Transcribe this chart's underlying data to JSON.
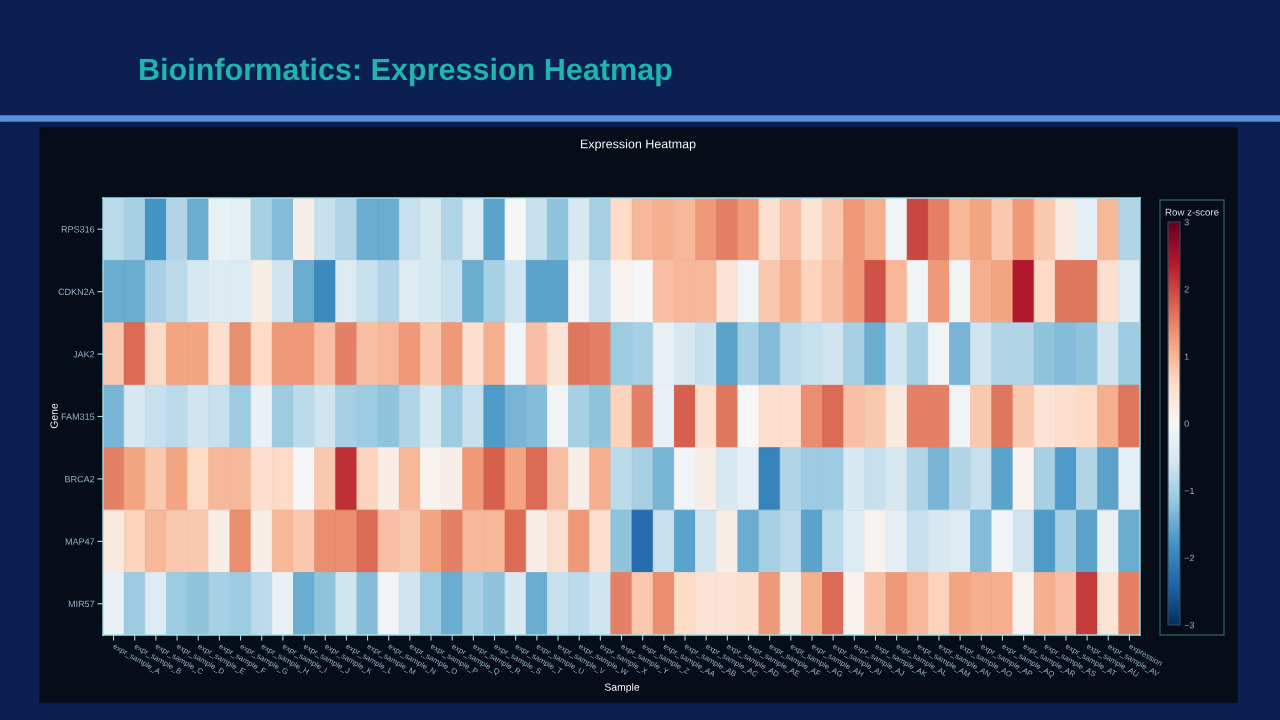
{
  "chart_data": {
    "type": "heatmap",
    "title": "Bioinformatics: Expression Heatmap",
    "subtitle": "Expression Heatmap",
    "xlabel": "Sample",
    "ylabel": "Gene",
    "clabel": "Row z-score",
    "categories": [
      "expr_sample_A",
      "expr_sample_B",
      "expr_sample_C",
      "expr_sample_D",
      "expr_sample_E",
      "expr_sample_F",
      "expr_sample_G",
      "expr_sample_H",
      "expr_sample_I",
      "expr_sample_J",
      "expr_sample_K",
      "expr_sample_L",
      "expr_sample_M",
      "expr_sample_N",
      "expr_sample_O",
      "expr_sample_P",
      "expr_sample_Q",
      "expr_sample_R",
      "expr_sample_S",
      "expr_sample_T",
      "expr_sample_U",
      "expr_sample_V",
      "expr_sample_W",
      "expr_sample_X",
      "expr_sample_Y",
      "expr_sample_Z",
      "expr_sample_AA",
      "expr_sample_AB",
      "expr_sample_AC",
      "expr_sample_AD",
      "expr_sample_AE",
      "expr_sample_AF",
      "expr_sample_AG",
      "expr_sample_AH",
      "expr_sample_AI",
      "expr_sample_AJ",
      "expr_sample_AK",
      "expr_sample_AL",
      "expr_sample_AM",
      "expr_sample_AN",
      "expr_sample_AO",
      "expr_sample_AP",
      "expr_sample_AQ",
      "expr_sample_AR",
      "expr_sample_AS",
      "expr_sample_AT",
      "expr_sample_AU",
      "expr_sample_AV",
      "expression"
    ],
    "y_categories": [
      "RPS316",
      "CDKN2A",
      "JAK2",
      "FAM315",
      "BRCA2",
      "MAP47",
      "MIR57"
    ],
    "cells": [
      [
        -0.8,
        -1.0,
        -1.8,
        -0.9,
        -1.5,
        -0.2,
        -0.3,
        -1.0,
        -1.3,
        0.2,
        -0.7,
        -0.9,
        -1.5,
        -1.5,
        -0.7,
        -0.5,
        -0.9,
        -0.4,
        -1.6,
        0.0,
        -0.7,
        -1.2,
        -0.5,
        -1.0,
        0.6,
        1.0,
        1.1,
        1.0,
        1.3,
        1.5,
        1.3,
        0.5,
        0.9,
        0.4,
        0.8,
        1.3,
        1.1,
        -0.1,
        2.0,
        1.5,
        1.0,
        1.2,
        0.8,
        1.3,
        0.8,
        0.3,
        -0.3,
        1.0,
        -0.9
      ],
      [
        -1.5,
        -1.5,
        -1.0,
        -0.8,
        -0.5,
        -0.4,
        -0.4,
        0.2,
        -0.6,
        -1.5,
        -1.9,
        -0.4,
        -0.7,
        -0.9,
        -0.4,
        -0.5,
        -0.7,
        -1.5,
        -1.0,
        -0.6,
        -1.6,
        -1.6,
        -0.1,
        -0.7,
        0.1,
        0.0,
        0.9,
        1.0,
        1.0,
        0.4,
        -0.1,
        0.8,
        1.1,
        0.7,
        0.9,
        1.3,
        1.9,
        1.0,
        -0.1,
        1.3,
        -0.1,
        1.1,
        1.2,
        2.4,
        0.6,
        1.6,
        1.6,
        0.5,
        -0.4
      ],
      [
        0.8,
        1.7,
        0.6,
        1.2,
        1.2,
        0.5,
        1.4,
        0.6,
        1.3,
        1.3,
        0.9,
        1.5,
        0.9,
        1.0,
        1.3,
        0.8,
        1.3,
        0.5,
        1.1,
        -0.1,
        0.9,
        0.4,
        1.6,
        1.5,
        -1.1,
        -1.0,
        -0.2,
        -0.5,
        -0.7,
        -1.6,
        -1.0,
        -1.3,
        -0.8,
        -0.7,
        -0.6,
        -1.0,
        -1.5,
        -0.6,
        -1.0,
        -0.1,
        -1.4,
        -0.6,
        -0.9,
        -0.9,
        -1.2,
        -1.3,
        -1.2,
        -0.6,
        -1.1
      ],
      [
        -1.4,
        -0.5,
        -0.7,
        -0.8,
        -0.6,
        -0.7,
        -1.1,
        -0.2,
        -1.1,
        -0.8,
        -0.6,
        -1.0,
        -1.1,
        -1.2,
        -0.9,
        -0.5,
        -1.1,
        -0.7,
        -1.7,
        -1.4,
        -1.3,
        -0.1,
        -1.0,
        -1.2,
        0.7,
        1.5,
        -0.2,
        1.8,
        0.5,
        1.6,
        0.0,
        0.5,
        0.5,
        1.4,
        1.7,
        0.9,
        0.8,
        0.3,
        1.5,
        1.5,
        -0.1,
        0.8,
        1.6,
        0.8,
        0.4,
        0.5,
        0.6,
        1.1,
        1.6
      ],
      [
        1.5,
        1.2,
        0.8,
        1.2,
        0.6,
        1.0,
        1.0,
        0.5,
        0.6,
        0.0,
        0.8,
        2.2,
        0.7,
        0.2,
        1.0,
        0.1,
        0.2,
        1.3,
        1.8,
        1.2,
        1.7,
        0.9,
        0.2,
        1.1,
        -0.8,
        -1.0,
        -1.4,
        -0.1,
        0.2,
        -0.5,
        -0.3,
        -2.0,
        -0.9,
        -1.1,
        -1.1,
        -0.5,
        -0.7,
        -0.5,
        -0.9,
        -1.4,
        -0.9,
        -0.7,
        -1.6,
        0.1,
        -1.0,
        -1.7,
        -0.9,
        -1.6,
        -0.3
      ],
      [
        0.3,
        0.7,
        1.0,
        0.8,
        0.8,
        0.2,
        1.4,
        0.2,
        1.0,
        0.8,
        1.4,
        1.4,
        1.7,
        0.9,
        0.8,
        1.2,
        1.5,
        1.0,
        1.0,
        1.7,
        0.2,
        0.5,
        1.3,
        0.5,
        -1.2,
        -2.3,
        -0.7,
        -1.6,
        -0.6,
        0.2,
        -1.5,
        -1.0,
        -0.8,
        -1.6,
        -0.8,
        -0.4,
        0.1,
        -0.3,
        -0.7,
        -0.5,
        -0.4,
        -1.3,
        -0.1,
        -0.6,
        -1.7,
        -1.0,
        -1.6,
        -0.2,
        -1.5
      ],
      [
        -0.2,
        -1.1,
        -0.4,
        -1.1,
        -1.2,
        -1.0,
        -1.1,
        -0.8,
        -0.2,
        -1.5,
        -1.2,
        -0.6,
        -1.3,
        -0.1,
        -0.6,
        -1.1,
        -1.5,
        -1.0,
        -1.2,
        -0.5,
        -1.5,
        -0.7,
        -0.8,
        -0.6,
        1.5,
        0.8,
        1.4,
        0.6,
        0.4,
        0.4,
        0.5,
        1.3,
        0.2,
        1.1,
        1.7,
        0.1,
        0.9,
        1.3,
        1.0,
        0.7,
        1.2,
        1.1,
        1.1,
        0.1,
        1.1,
        0.9,
        2.1,
        0.4,
        1.5
      ]
    ],
    "clim": [
      -3,
      3
    ],
    "cticks": [
      {
        "value": -3,
        "label": "−3"
      },
      {
        "value": -2,
        "label": "−2"
      },
      {
        "value": -1,
        "label": "−1"
      },
      0,
      1,
      2,
      3
    ]
  }
}
